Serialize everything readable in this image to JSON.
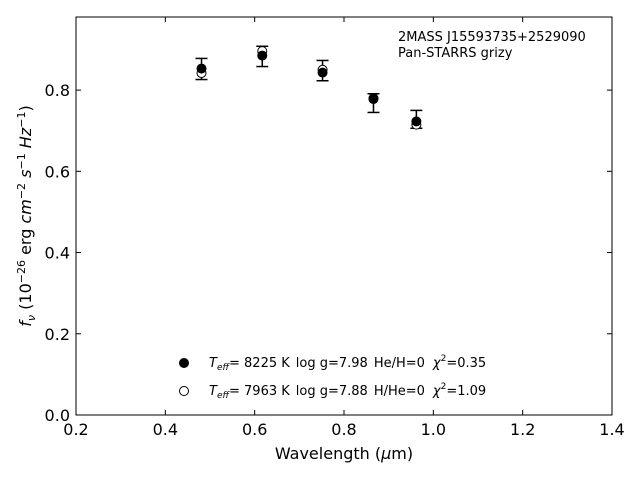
{
  "chart_data": {
    "type": "scatter",
    "xlabel_prefix": "Wavelength (",
    "xlabel_unit": "μ",
    "xlabel_suffix": "m)",
    "ylabel": "f_ν (10^-26 erg cm^-2 s^-1 Hz^-1)",
    "xlim": [
      0.2,
      1.4
    ],
    "ylim": [
      0.0,
      0.98
    ],
    "x_ticks": [
      0.2,
      0.4,
      0.6,
      0.8,
      1.0,
      1.2,
      1.4
    ],
    "x_tick_labels": [
      "0.2",
      "0.4",
      "0.6",
      "0.8",
      "1.0",
      "1.2",
      "1.4"
    ],
    "y_ticks": [
      0.0,
      0.2,
      0.4,
      0.6,
      0.8
    ],
    "y_tick_labels": [
      "0.0",
      "0.2",
      "0.4",
      "0.6",
      "0.8"
    ],
    "grid": false,
    "annotation": {
      "line1": "2MASS J15593735+2529090",
      "line2": "Pan-STARRS grizy"
    },
    "observed": {
      "x": [
        0.481,
        0.617,
        0.752,
        0.866,
        0.962
      ],
      "y": [
        0.852,
        0.883,
        0.848,
        0.768,
        0.728
      ],
      "err": [
        0.026,
        0.025,
        0.025,
        0.023,
        0.022
      ]
    },
    "series": [
      {
        "marker": "filled",
        "legend": {
          "teff_symbol": "T",
          "teff_sub": "eff",
          "teff_eq": "=  8225 K",
          "logg": "log g=7.98",
          "comp": "He/H=0",
          "chi_symbol": "χ",
          "chi_sup": "2",
          "chi_val": "=0.35"
        },
        "x": [
          0.481,
          0.617,
          0.752,
          0.866,
          0.962
        ],
        "y": [
          0.853,
          0.885,
          0.843,
          0.778,
          0.723
        ]
      },
      {
        "marker": "open",
        "legend": {
          "teff_symbol": "T",
          "teff_sub": "eff",
          "teff_eq": "=  7963 K",
          "logg": "log g=7.88",
          "comp": "H/He=0",
          "chi_symbol": "χ",
          "chi_sup": "2",
          "chi_val": "=1.09"
        },
        "x": [
          0.481,
          0.617,
          0.752,
          0.866,
          0.962
        ],
        "y": [
          0.842,
          0.896,
          0.85,
          0.78,
          0.715
        ]
      }
    ]
  }
}
